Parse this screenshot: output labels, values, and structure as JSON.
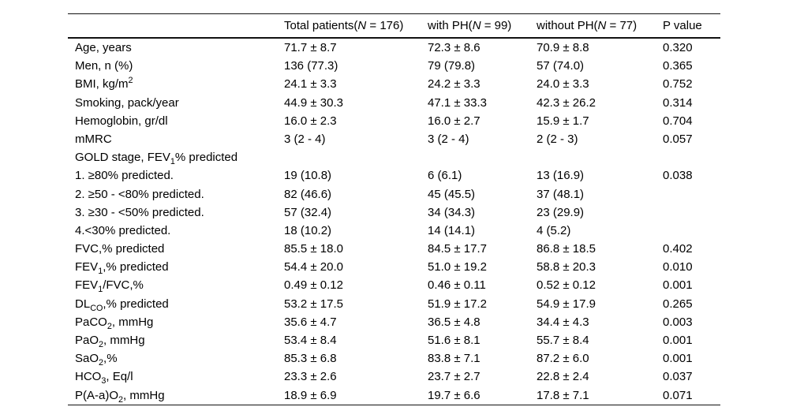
{
  "table": {
    "columns": [
      "",
      "Total patients(*N* = 176)",
      "with PH(*N* = 99)",
      "without PH(*N* = 77)",
      "P value"
    ],
    "rows": [
      {
        "cells": [
          "Age, years",
          "71.7 ± 8.7",
          "72.3 ± 8.6",
          "70.9 ± 8.8",
          "0.320"
        ]
      },
      {
        "cells": [
          "Men, n (%)",
          "136 (77.3)",
          "79 (79.8)",
          "57 (74.0)",
          "0.365"
        ]
      },
      {
        "cells": [
          "BMI, kg/m^2^",
          "24.1 ± 3.3",
          "24.2 ± 3.3",
          "24.0 ± 3.3",
          "0.752"
        ]
      },
      {
        "cells": [
          "Smoking, pack/year",
          "44.9 ± 30.3",
          "47.1 ± 33.3",
          "42.3 ± 26.2",
          "0.314"
        ]
      },
      {
        "cells": [
          "Hemoglobin, gr/dl",
          "16.0 ± 2.3",
          "16.0 ± 2.7",
          "15.9 ± 1.7",
          "0.704"
        ]
      },
      {
        "cells": [
          "mMRC",
          "3 (2 - 4)",
          "3 (2 - 4)",
          "2 (2 - 3)",
          "0.057"
        ]
      },
      {
        "cells": [
          "GOLD stage, FEV~1~% predicted",
          "",
          "",
          "",
          ""
        ]
      },
      {
        "cells": [
          "1. ≥80% predicted.",
          "19 (10.8)",
          "6 (6.1)",
          "13 (16.9)",
          "0.038"
        ]
      },
      {
        "cells": [
          "2. ≥50 - <80% predicted.",
          "82 (46.6)",
          "45 (45.5)",
          "37 (48.1)",
          ""
        ]
      },
      {
        "cells": [
          "3. ≥30 - <50% predicted.",
          "57 (32.4)",
          "34 (34.3)",
          "23 (29.9)",
          ""
        ]
      },
      {
        "cells": [
          "4.<30% predicted.",
          "18 (10.2)",
          "14 (14.1)",
          "4 (5.2)",
          ""
        ]
      },
      {
        "cells": [
          "FVC,% predicted",
          "85.5 ± 18.0",
          "84.5 ± 17.7",
          "86.8 ± 18.5",
          "0.402"
        ]
      },
      {
        "cells": [
          "FEV~1~,% predicted",
          "54.4 ± 20.0",
          "51.0 ± 19.2",
          "58.8 ± 20.3",
          "0.010"
        ]
      },
      {
        "cells": [
          "FEV~1~/FVC,%",
          "0.49 ± 0.12",
          "0.46 ± 0.11",
          "0.52 ± 0.12",
          "0.001"
        ]
      },
      {
        "cells": [
          "DL~CO~,% predicted",
          "53.2 ± 17.5",
          "51.9 ± 17.2",
          "54.9 ± 17.9",
          "0.265"
        ]
      },
      {
        "cells": [
          "PaCO~2~, mmHg",
          "35.6 ± 4.7",
          "36.5 ± 4.8",
          "34.4 ± 4.3",
          "0.003"
        ]
      },
      {
        "cells": [
          "PaO~2~, mmHg",
          "53.4 ± 8.4",
          "51.6 ± 8.1",
          "55.7 ± 8.4",
          "0.001"
        ]
      },
      {
        "cells": [
          "SaO~2~,%",
          "85.3 ± 6.8",
          "83.8 ± 7.1",
          "87.2 ± 6.0",
          "0.001"
        ]
      },
      {
        "cells": [
          "HCO~3~, Eq/l",
          "23.3 ± 2.6",
          "23.7 ± 2.7",
          "22.8 ± 2.4",
          "0.037"
        ]
      },
      {
        "cells": [
          "P(A-a)O~2~, mmHg",
          "18.9 ± 6.9",
          "19.7 ± 6.6",
          "17.8 ± 7.1",
          "0.071"
        ]
      }
    ]
  }
}
